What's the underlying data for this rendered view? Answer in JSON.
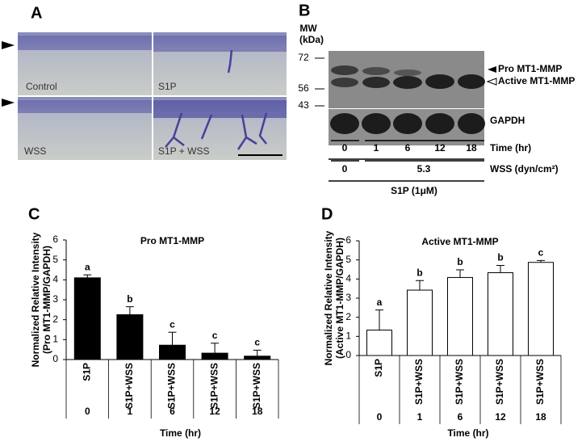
{
  "panel_a": {
    "label": "A",
    "images": [
      "Control",
      "S1P",
      "WSS",
      "S1P + WSS"
    ]
  },
  "panel_b": {
    "label": "B",
    "mw_title": [
      "MW",
      "(kDa)"
    ],
    "mw_markers": [
      72,
      56,
      43
    ],
    "bands": [
      "Pro MT1-MMP",
      "Active MT1-MMP",
      "GAPDH"
    ],
    "time_values": [
      0,
      1,
      6,
      12,
      18
    ],
    "time_label": "Time (hr)",
    "wss_values": [
      0,
      5.3
    ],
    "wss_label": "WSS (dyn/cm²)",
    "s1p_label": "S1P (1μM)"
  },
  "chart_data": [
    {
      "type": "bar",
      "panel": "C",
      "title": "Pro MT1-MMP",
      "y_label": [
        "Normalized Relative Intensity",
        "(Pro MT1-MMP/GAPDH)"
      ],
      "categories": [
        "S1P",
        "S1P+WSS",
        "S1P+WSS",
        "S1P+WSS",
        "S1P+WSS"
      ],
      "times": [
        0,
        1,
        6,
        12,
        18
      ],
      "x_label": "Time (hr)",
      "values": [
        4.1,
        2.25,
        0.72,
        0.32,
        0.17
      ],
      "errors": [
        0.15,
        0.4,
        0.65,
        0.5,
        0.3
      ],
      "letters": [
        "a",
        "b",
        "c",
        "c",
        "c"
      ],
      "color": "#000000",
      "edge_color": "#000000",
      "ylim": [
        0,
        6
      ],
      "yticks": [
        0,
        1,
        2,
        3,
        4,
        5,
        6
      ]
    },
    {
      "type": "bar",
      "panel": "D",
      "title": "Active MT1-MMP",
      "y_label": [
        "Normalized Relative Intensity",
        "(Active MT1-MMP/GAPDH)"
      ],
      "categories": [
        "S1P",
        "S1P+WSS",
        "S1P+WSS",
        "S1P+WSS",
        "S1P+WSS"
      ],
      "times": [
        0,
        1,
        6,
        12,
        18
      ],
      "x_label": "Time (hr)",
      "values": [
        1.33,
        3.42,
        4.08,
        4.33,
        4.87
      ],
      "errors": [
        1.05,
        0.5,
        0.4,
        0.38,
        0.1
      ],
      "letters": [
        "a",
        "b",
        "b",
        "b",
        "c"
      ],
      "color": "#ffffff",
      "edge_color": "#000000",
      "ylim": [
        0,
        6
      ],
      "yticks": [
        0,
        1,
        2,
        3,
        4,
        5,
        6
      ]
    }
  ]
}
